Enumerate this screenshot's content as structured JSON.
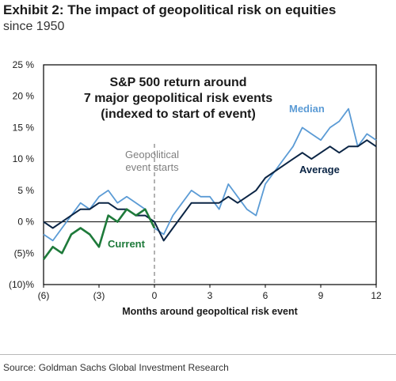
{
  "header": {
    "title": "Exhibit 2: The impact of geopolitical risk on equities",
    "subtitle": "since 1950"
  },
  "footer": {
    "source": "Source: Goldman Sachs Global Investment Research"
  },
  "colors": {
    "median": "#5b9bd5",
    "average": "#0b2545",
    "current": "#1e7a3a",
    "event_line": "#7f7f7f"
  },
  "chart_data": {
    "type": "line",
    "title": "",
    "xlabel": "Months around geopoltical risk event",
    "ylabel": "",
    "xlim": [
      -6,
      12
    ],
    "ylim": [
      -10,
      25
    ],
    "x_tick_labels": [
      "(6)",
      "(3)",
      "0",
      "3",
      "6",
      "9",
      "12"
    ],
    "x_ticks": [
      -6,
      -3,
      0,
      3,
      6,
      9,
      12
    ],
    "y_tick_labels": [
      "25 %",
      "20 %",
      "15 %",
      "10 %",
      "5 %",
      "0 %",
      "(5)%",
      "(10)%"
    ],
    "y_ticks": [
      25,
      20,
      15,
      10,
      5,
      0,
      -5,
      -10
    ],
    "annotations": {
      "box_text": [
        "S&P 500 return around",
        "7 major geopolitical risk events",
        "(indexed to start of event)"
      ],
      "event_label": [
        "Geopolitical",
        "event starts"
      ],
      "median_label": "Median",
      "average_label": "Average",
      "current_label": "Current"
    },
    "series": [
      {
        "name": "Median",
        "x": [
          -6,
          -5.5,
          -5,
          -4.5,
          -4,
          -3.5,
          -3,
          -2.5,
          -2,
          -1.5,
          -1,
          -0.5,
          0,
          0.5,
          1,
          1.5,
          2,
          2.5,
          3,
          3.5,
          4,
          4.5,
          5,
          5.5,
          6,
          6.5,
          7,
          7.5,
          8,
          8.5,
          9,
          9.5,
          10,
          10.5,
          11,
          11.5,
          12
        ],
        "values": [
          -2,
          -3,
          -1,
          1,
          3,
          2,
          4,
          5,
          3,
          4,
          3,
          2,
          -1,
          -2,
          1,
          3,
          5,
          4,
          4,
          2,
          6,
          4,
          2,
          1,
          6,
          8,
          10,
          12,
          15,
          14,
          13,
          15,
          16,
          18,
          12,
          14,
          13
        ]
      },
      {
        "name": "Average",
        "x": [
          -6,
          -5.5,
          -5,
          -4.5,
          -4,
          -3.5,
          -3,
          -2.5,
          -2,
          -1.5,
          -1,
          -0.5,
          0,
          0.5,
          1,
          1.5,
          2,
          2.5,
          3,
          3.5,
          4,
          4.5,
          5,
          5.5,
          6,
          6.5,
          7,
          7.5,
          8,
          8.5,
          9,
          9.5,
          10,
          10.5,
          11,
          11.5,
          12
        ],
        "values": [
          0,
          -1,
          0,
          1,
          2,
          2,
          3,
          3,
          2,
          2,
          1,
          1,
          0,
          -3,
          -1,
          1,
          3,
          3,
          3,
          3,
          4,
          3,
          4,
          5,
          7,
          8,
          9,
          10,
          11,
          10,
          11,
          12,
          11,
          12,
          12,
          13,
          12
        ]
      },
      {
        "name": "Current",
        "x": [
          -6,
          -5.5,
          -5,
          -4.5,
          -4,
          -3.5,
          -3,
          -2.5,
          -2,
          -1.5,
          -1,
          -0.5,
          0
        ],
        "values": [
          -6,
          -4,
          -5,
          -2,
          -1,
          -2,
          -4,
          1,
          0,
          2,
          1,
          2,
          -1
        ]
      }
    ]
  }
}
